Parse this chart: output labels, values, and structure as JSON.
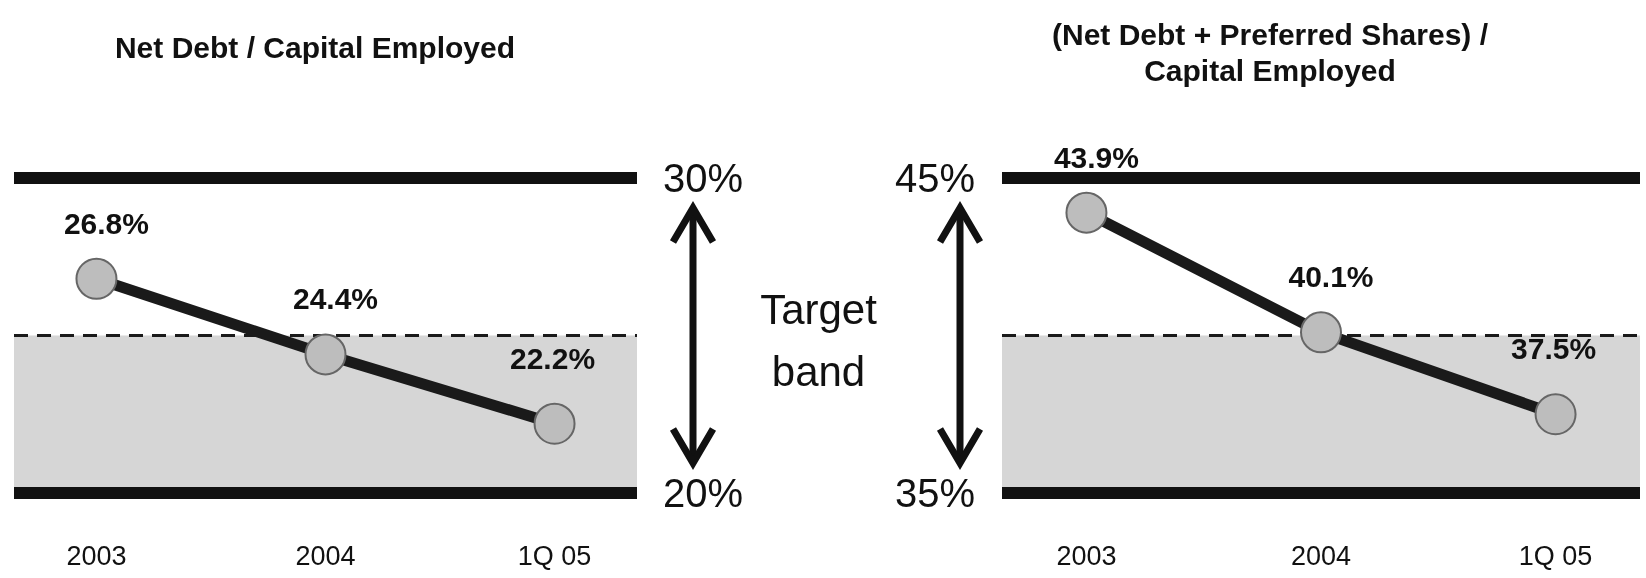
{
  "chart_data": [
    {
      "type": "line",
      "title": "Net Debt / Capital Employed",
      "categories": [
        "2003",
        "2004",
        "1Q 05"
      ],
      "series": [
        {
          "color": "#1a1a1a",
          "values": [
            26.8,
            24.4,
            22.2
          ],
          "value_labels": [
            "26.8%",
            "24.4%",
            "22.2%"
          ]
        }
      ],
      "ylim": [
        20,
        30
      ],
      "yticks": [
        {
          "value": 20,
          "label": "20%"
        },
        {
          "value": 30,
          "label": "30%"
        }
      ],
      "marker": "circle",
      "ref_lines": [
        {
          "axis": "y",
          "value": 30,
          "line_style": "solid",
          "color": "#111111"
        },
        {
          "axis": "y",
          "value": 25,
          "line_style": "dashed",
          "color": "#1a1a1a"
        }
      ],
      "bands": [
        {
          "axis": "y",
          "from": 20,
          "to": 25,
          "color": "#d6d6d6"
        }
      ],
      "annotations": [
        "Target band"
      ]
    },
    {
      "type": "line",
      "title": "(Net Debt + Preferred Shares) / Capital Employed",
      "categories": [
        "2003",
        "2004",
        "1Q 05"
      ],
      "series": [
        {
          "color": "#1a1a1a",
          "values": [
            43.9,
            40.1,
            37.5
          ],
          "value_labels": [
            "43.9%",
            "40.1%",
            "37.5%"
          ]
        }
      ],
      "ylim": [
        35,
        45
      ],
      "yticks": [
        {
          "value": 35,
          "label": "35%"
        },
        {
          "value": 45,
          "label": "45%"
        }
      ],
      "marker": "circle",
      "ref_lines": [
        {
          "axis": "y",
          "value": 45,
          "line_style": "solid",
          "color": "#111111"
        },
        {
          "axis": "y",
          "value": 40,
          "line_style": "dashed",
          "color": "#1a1a1a"
        }
      ],
      "bands": [
        {
          "axis": "y",
          "from": 35,
          "to": 40,
          "color": "#d6d6d6"
        }
      ]
    }
  ]
}
